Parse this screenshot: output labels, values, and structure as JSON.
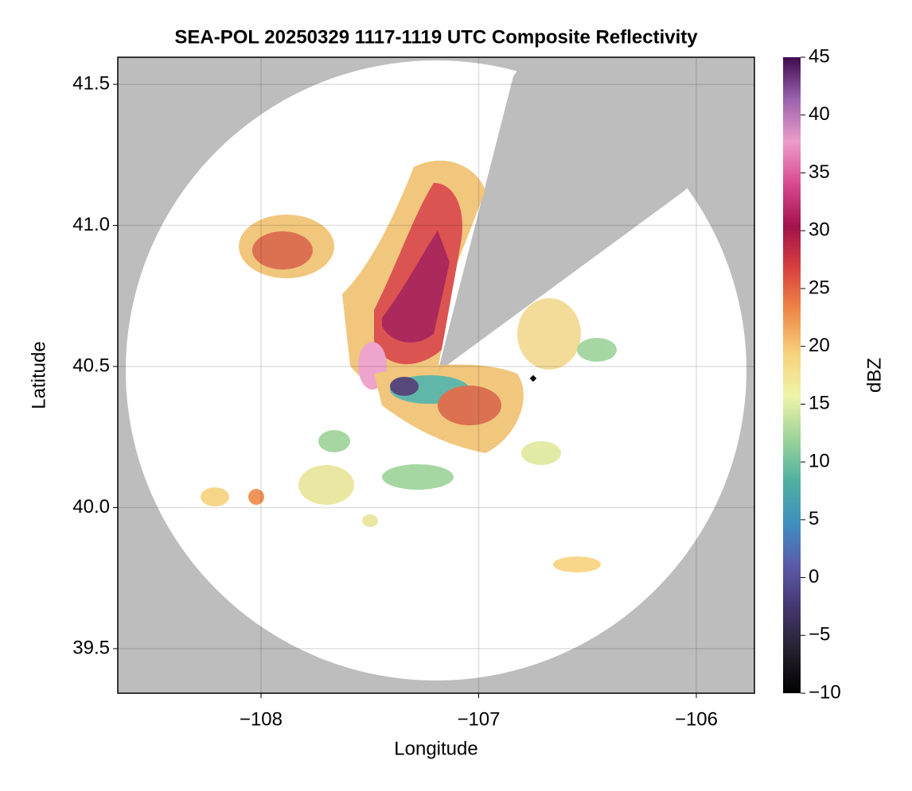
{
  "chart_data": {
    "type": "radar-map",
    "title": "SEA-POL 20250329 1117-1119 UTC Composite Reflectivity",
    "x_label": "Longitude",
    "y_label": "Latitude",
    "xlim": [
      -108.658,
      -105.733
    ],
    "xticks": [
      {
        "value": -108,
        "label": "−108"
      },
      {
        "value": -107,
        "label": "−107"
      },
      {
        "value": -106,
        "label": "−106"
      }
    ],
    "ylim": [
      39.342,
      41.596
    ],
    "yticks": [
      39.5,
      {
        "value": 40.0,
        "label": "40.0"
      },
      40.5,
      {
        "value": 41.0,
        "label": "41.0"
      },
      41.5
    ],
    "grid": true,
    "colorbar": {
      "label": "dBZ",
      "lim": [
        -10,
        45
      ],
      "ticks": [
        {
          "value": -10,
          "label": "−10"
        },
        {
          "value": -5,
          "label": "−5"
        },
        0,
        5,
        10,
        15,
        20,
        25,
        30,
        35,
        40,
        45
      ],
      "colors": [
        "#000000",
        "#25202e",
        "#45356e",
        "#5b5aa8",
        "#3f8fbf",
        "#4fb0a0",
        "#9dd39a",
        "#eef4a8",
        "#f7d27d",
        "#ef8a48",
        "#d8423f",
        "#a3124a",
        "#d84890",
        "#ec9cc8",
        "#9c63ae",
        "#3f0a4e"
      ]
    }
  }
}
